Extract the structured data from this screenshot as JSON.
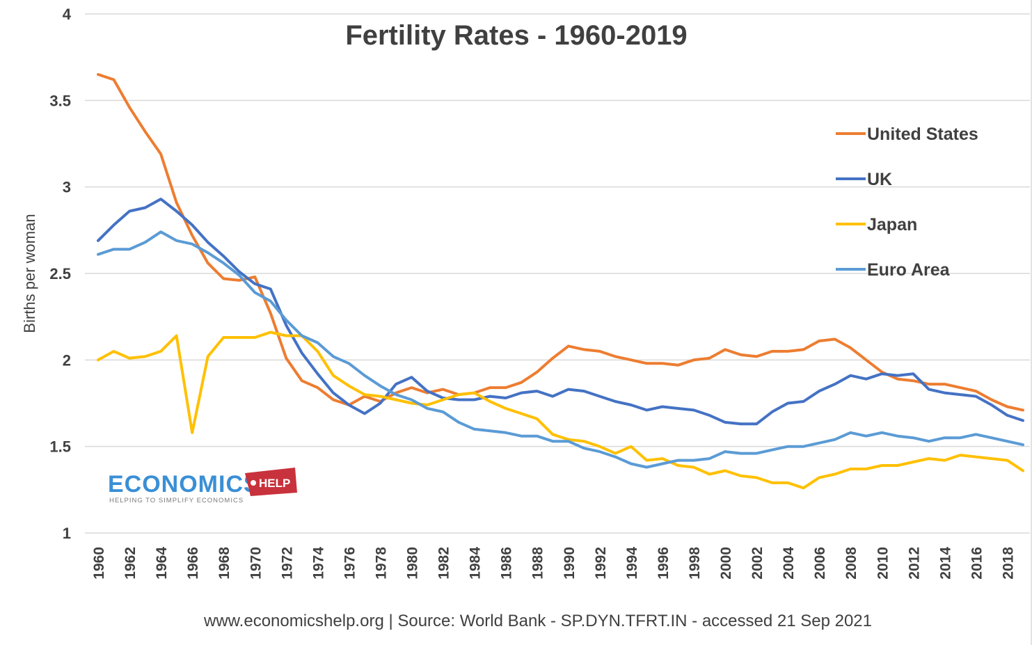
{
  "chart_data": {
    "type": "line",
    "title": "Fertility Rates - 1960-2019",
    "ylabel": "Births per woman",
    "xlabel": "",
    "ylim": [
      1,
      4
    ],
    "yticks": [
      "1",
      "1.5",
      "2",
      "2.5",
      "3",
      "3.5",
      "4"
    ],
    "xlim": [
      1960,
      2019
    ],
    "xtick_labels": [
      "1960",
      "1962",
      "1964",
      "1966",
      "1968",
      "1970",
      "1972",
      "1974",
      "1976",
      "1978",
      "1980",
      "1982",
      "1984",
      "1986",
      "1988",
      "1990",
      "1992",
      "1994",
      "1996",
      "1998",
      "2000",
      "2002",
      "2004",
      "2006",
      "2008",
      "2010",
      "2012",
      "2014",
      "2016",
      "2018"
    ],
    "grid": "horizontal",
    "legend_position": "right",
    "x": [
      1960,
      1961,
      1962,
      1963,
      1964,
      1965,
      1966,
      1967,
      1968,
      1969,
      1970,
      1971,
      1972,
      1973,
      1974,
      1975,
      1976,
      1977,
      1978,
      1979,
      1980,
      1981,
      1982,
      1983,
      1984,
      1985,
      1986,
      1987,
      1988,
      1989,
      1990,
      1991,
      1992,
      1993,
      1994,
      1995,
      1996,
      1997,
      1998,
      1999,
      2000,
      2001,
      2002,
      2003,
      2004,
      2005,
      2006,
      2007,
      2008,
      2009,
      2010,
      2011,
      2012,
      2013,
      2014,
      2015,
      2016,
      2017,
      2018,
      2019
    ],
    "series": [
      {
        "name": "United States",
        "color": "#ed7d31",
        "values": [
          3.65,
          3.62,
          3.46,
          3.32,
          3.19,
          2.91,
          2.72,
          2.56,
          2.47,
          2.46,
          2.48,
          2.27,
          2.01,
          1.88,
          1.84,
          1.77,
          1.74,
          1.79,
          1.76,
          1.81,
          1.84,
          1.81,
          1.83,
          1.8,
          1.81,
          1.84,
          1.84,
          1.87,
          1.93,
          2.01,
          2.08,
          2.06,
          2.05,
          2.02,
          2.0,
          1.98,
          1.98,
          1.97,
          2.0,
          2.01,
          2.06,
          2.03,
          2.02,
          2.05,
          2.05,
          2.06,
          2.11,
          2.12,
          2.07,
          2.0,
          1.93,
          1.89,
          1.88,
          1.86,
          1.86,
          1.84,
          1.82,
          1.77,
          1.73,
          1.71
        ]
      },
      {
        "name": "UK",
        "color": "#4472c4",
        "values": [
          2.69,
          2.78,
          2.86,
          2.88,
          2.93,
          2.86,
          2.78,
          2.68,
          2.6,
          2.51,
          2.44,
          2.41,
          2.2,
          2.04,
          1.92,
          1.81,
          1.74,
          1.69,
          1.75,
          1.86,
          1.9,
          1.82,
          1.78,
          1.77,
          1.77,
          1.79,
          1.78,
          1.81,
          1.82,
          1.79,
          1.83,
          1.82,
          1.79,
          1.76,
          1.74,
          1.71,
          1.73,
          1.72,
          1.71,
          1.68,
          1.64,
          1.63,
          1.63,
          1.7,
          1.75,
          1.76,
          1.82,
          1.86,
          1.91,
          1.89,
          1.92,
          1.91,
          1.92,
          1.83,
          1.81,
          1.8,
          1.79,
          1.74,
          1.68,
          1.65
        ]
      },
      {
        "name": "Japan",
        "color": "#ffc000",
        "values": [
          2.0,
          2.05,
          2.01,
          2.02,
          2.05,
          2.14,
          1.58,
          2.02,
          2.13,
          2.13,
          2.13,
          2.16,
          2.14,
          2.14,
          2.05,
          1.91,
          1.85,
          1.8,
          1.79,
          1.77,
          1.75,
          1.74,
          1.77,
          1.8,
          1.81,
          1.76,
          1.72,
          1.69,
          1.66,
          1.57,
          1.54,
          1.53,
          1.5,
          1.46,
          1.5,
          1.42,
          1.43,
          1.39,
          1.38,
          1.34,
          1.36,
          1.33,
          1.32,
          1.29,
          1.29,
          1.26,
          1.32,
          1.34,
          1.37,
          1.37,
          1.39,
          1.39,
          1.41,
          1.43,
          1.42,
          1.45,
          1.44,
          1.43,
          1.42,
          1.36
        ]
      },
      {
        "name": "Euro Area",
        "color": "#5b9bd5",
        "values": [
          2.61,
          2.64,
          2.64,
          2.68,
          2.74,
          2.69,
          2.67,
          2.62,
          2.56,
          2.49,
          2.39,
          2.34,
          2.23,
          2.14,
          2.1,
          2.02,
          1.98,
          1.91,
          1.85,
          1.8,
          1.77,
          1.72,
          1.7,
          1.64,
          1.6,
          1.59,
          1.58,
          1.56,
          1.56,
          1.53,
          1.53,
          1.49,
          1.47,
          1.44,
          1.4,
          1.38,
          1.4,
          1.42,
          1.42,
          1.43,
          1.47,
          1.46,
          1.46,
          1.48,
          1.5,
          1.5,
          1.52,
          1.54,
          1.58,
          1.56,
          1.58,
          1.56,
          1.55,
          1.53,
          1.55,
          1.55,
          1.57,
          1.55,
          1.53,
          1.51
        ]
      }
    ]
  },
  "logo": {
    "main": "ECONOMICS",
    "tag": "HELP",
    "subtitle": "HELPING TO SIMPLIFY ECONOMICS",
    "main_color": "#3a8fd6",
    "tag_color": "#c8323c"
  },
  "footer": {
    "source": "www.economicshelp.org  | Source:  World Bank - SP.DYN.TFRT.IN  - accessed 21 Sep 2021"
  }
}
